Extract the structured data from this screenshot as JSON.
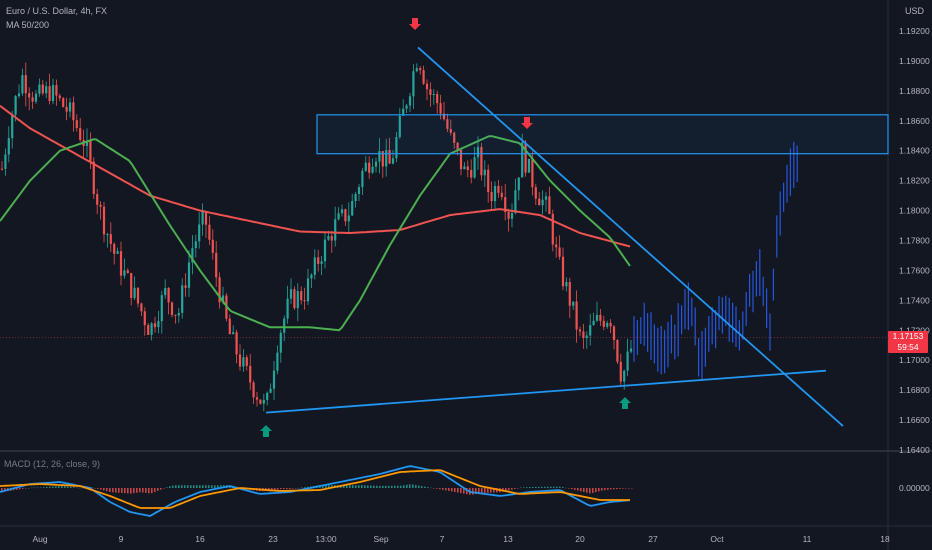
{
  "chart_data": {
    "type": "candlestick",
    "symbol_title": "Euro / U.S. Dollar, 4h, FX",
    "indicator_label": "MA 50/200",
    "macd_label": "MACD (12, 26, close, 9)",
    "currency": "USD",
    "y_ticks": [
      "1.19200",
      "1.19000",
      "1.18800",
      "1.18600",
      "1.18400",
      "1.18200",
      "1.18000",
      "1.17800",
      "1.17600",
      "1.17400",
      "1.17200",
      "1.17000",
      "1.16800",
      "1.16600",
      "1.16400"
    ],
    "macd_tick": "0.00000",
    "x_ticks": [
      "Aug",
      "9",
      "16",
      "23",
      "13:00",
      "Sep",
      "7",
      "13",
      "20",
      "27",
      "Oct",
      "11",
      "18"
    ],
    "current_price": "1.17153",
    "countdown": "59:54",
    "ylim": [
      1.164,
      1.194
    ],
    "resistance_zone": [
      1.1838,
      1.1864
    ],
    "key_points": {
      "low_aug": 1.1665,
      "high_sep": 1.1909,
      "low_sep": 1.1684,
      "last": 1.185
    },
    "colors": {
      "background": "#131722",
      "up": "#26a69a",
      "down": "#ef5350",
      "forecast": "#2962ff",
      "ma50": "#4caf50",
      "ma200": "#f23645",
      "trendline": "#2196f3",
      "macd": "#2196f3",
      "signal": "#ff9800",
      "arrow_down": "#f23645",
      "arrow_up": "#089981"
    }
  }
}
